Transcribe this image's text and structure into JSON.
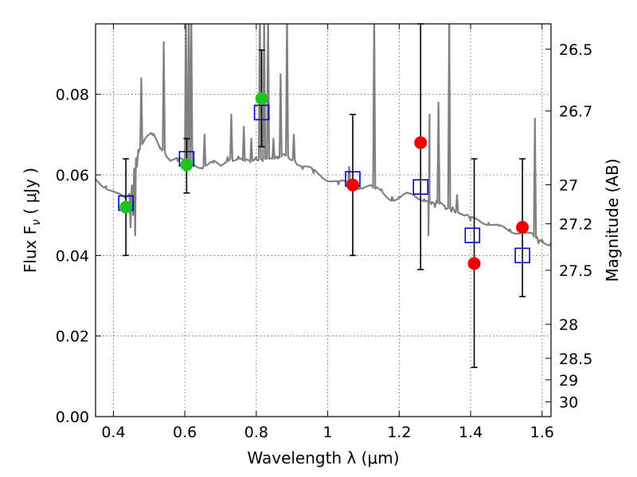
{
  "chart_data": {
    "type": "scatter",
    "xlabel": "Wavelength  λ (μm)",
    "ylabel": "Flux  F",
    "ylabel_sub": "ν",
    "ylabel_unit": " ( μJy )",
    "y2label": "Magnitude (AB)",
    "xlim": [
      0.35,
      1.625
    ],
    "ylim": [
      0.0,
      0.0975
    ],
    "grid": true,
    "x_ticks": [
      {
        "value": 0.4,
        "label": "0.4"
      },
      {
        "value": 0.6,
        "label": "0.6"
      },
      {
        "value": 0.8,
        "label": "0.8"
      },
      {
        "value": 1.0,
        "label": "1"
      },
      {
        "value": 1.2,
        "label": "1.2"
      },
      {
        "value": 1.4,
        "label": "1.4"
      },
      {
        "value": 1.6,
        "label": "1.6"
      }
    ],
    "y_ticks": [
      {
        "value": 0.0,
        "label": "0.00"
      },
      {
        "value": 0.02,
        "label": "0.02"
      },
      {
        "value": 0.04,
        "label": "0.04"
      },
      {
        "value": 0.06,
        "label": "0.06"
      },
      {
        "value": 0.08,
        "label": "0.08"
      }
    ],
    "mag_ticks": [
      {
        "value": 26.5,
        "label": "26.5"
      },
      {
        "value": 26.7,
        "label": "26.7"
      },
      {
        "value": 27.0,
        "label": "27"
      },
      {
        "value": 27.2,
        "label": "27.2"
      },
      {
        "value": 27.5,
        "label": "27.5"
      },
      {
        "value": 28.0,
        "label": "28"
      },
      {
        "value": 28.5,
        "label": "28.5"
      },
      {
        "value": 29.0,
        "label": "29"
      },
      {
        "value": 30.0,
        "label": "30"
      }
    ],
    "series": [
      {
        "role": "spectrum",
        "color": "#808080",
        "continuum": [
          [
            0.35,
            0.059
          ],
          [
            0.38,
            0.057
          ],
          [
            0.41,
            0.055
          ],
          [
            0.435,
            0.054
          ],
          [
            0.45,
            0.056
          ],
          [
            0.46,
            0.063
          ],
          [
            0.47,
            0.066
          ],
          [
            0.49,
            0.069
          ],
          [
            0.51,
            0.07
          ],
          [
            0.53,
            0.067
          ],
          [
            0.56,
            0.064
          ],
          [
            0.58,
            0.064
          ],
          [
            0.6,
            0.063
          ],
          [
            0.62,
            0.063
          ],
          [
            0.65,
            0.062
          ],
          [
            0.68,
            0.063
          ],
          [
            0.7,
            0.062
          ],
          [
            0.72,
            0.064
          ],
          [
            0.75,
            0.064
          ],
          [
            0.78,
            0.063
          ],
          [
            0.8,
            0.064
          ],
          [
            0.83,
            0.064
          ],
          [
            0.86,
            0.064
          ],
          [
            0.88,
            0.065
          ],
          [
            0.9,
            0.064
          ],
          [
            0.93,
            0.062
          ],
          [
            0.96,
            0.061
          ],
          [
            1.0,
            0.059
          ],
          [
            1.03,
            0.058
          ],
          [
            1.06,
            0.058
          ],
          [
            1.09,
            0.057
          ],
          [
            1.12,
            0.057
          ],
          [
            1.15,
            0.056
          ],
          [
            1.18,
            0.054
          ],
          [
            1.2,
            0.054
          ],
          [
            1.22,
            0.055
          ],
          [
            1.24,
            0.055
          ],
          [
            1.27,
            0.054
          ],
          [
            1.29,
            0.053
          ],
          [
            1.31,
            0.053
          ],
          [
            1.33,
            0.052
          ],
          [
            1.36,
            0.051
          ],
          [
            1.38,
            0.05
          ],
          [
            1.4,
            0.049
          ],
          [
            1.42,
            0.049
          ],
          [
            1.45,
            0.048
          ],
          [
            1.48,
            0.047
          ],
          [
            1.51,
            0.046
          ],
          [
            1.54,
            0.046
          ],
          [
            1.57,
            0.045
          ],
          [
            1.6,
            0.0435
          ],
          [
            1.625,
            0.043
          ]
        ],
        "dips": [
          [
            0.448,
            0.047
          ],
          [
            0.461,
            0.045
          ],
          [
            0.455,
            0.05
          ],
          [
            1.282,
            0.045
          ],
          [
            1.3,
            0.052
          ],
          [
            1.35,
            0.052
          ],
          [
            1.38,
            0.05
          ],
          [
            1.59,
            0.043
          ]
        ],
        "emission_lines": [
          [
            0.466,
            0.062
          ],
          [
            0.478,
            0.084
          ],
          [
            0.541,
            0.093
          ],
          [
            0.603,
            0.1
          ],
          [
            0.611,
            0.1
          ],
          [
            0.618,
            0.1
          ],
          [
            0.655,
            0.07
          ],
          [
            0.73,
            0.075
          ],
          [
            0.765,
            0.072
          ],
          [
            0.786,
            0.069
          ],
          [
            0.81,
            0.1
          ],
          [
            0.822,
            0.1
          ],
          [
            0.833,
            0.1
          ],
          [
            0.848,
            0.069
          ],
          [
            0.868,
            0.085
          ],
          [
            0.886,
            0.1
          ],
          [
            0.905,
            0.07
          ],
          [
            1.06,
            0.062
          ],
          [
            1.13,
            0.1
          ],
          [
            1.285,
            0.075
          ],
          [
            1.31,
            0.078
          ],
          [
            1.34,
            0.1
          ],
          [
            1.362,
            0.055
          ],
          [
            1.58,
            0.074
          ]
        ]
      },
      {
        "role": "model-boxes",
        "color": "#0000cc",
        "x": [
          0.435,
          0.605,
          0.815,
          1.07,
          1.26,
          1.405,
          1.545
        ],
        "y": [
          0.053,
          0.064,
          0.0755,
          0.059,
          0.057,
          0.045,
          0.04
        ]
      },
      {
        "role": "green-points",
        "color": "#1fc41f",
        "x": [
          0.435,
          0.605,
          0.815
        ],
        "y": [
          0.052,
          0.0625,
          0.079
        ],
        "err_low": [
          0.04,
          0.0555,
          0.067
        ],
        "err_high": [
          0.064,
          0.069,
          0.091
        ]
      },
      {
        "role": "red-points",
        "color": "#ee0000",
        "x": [
          1.07,
          1.26,
          1.41,
          1.545
        ],
        "y": [
          0.0575,
          0.068,
          0.038,
          0.047
        ],
        "err_low": [
          0.04,
          0.0365,
          0.0122,
          0.0298
        ],
        "err_high": [
          0.075,
          0.0975,
          0.064,
          0.064
        ]
      }
    ]
  }
}
